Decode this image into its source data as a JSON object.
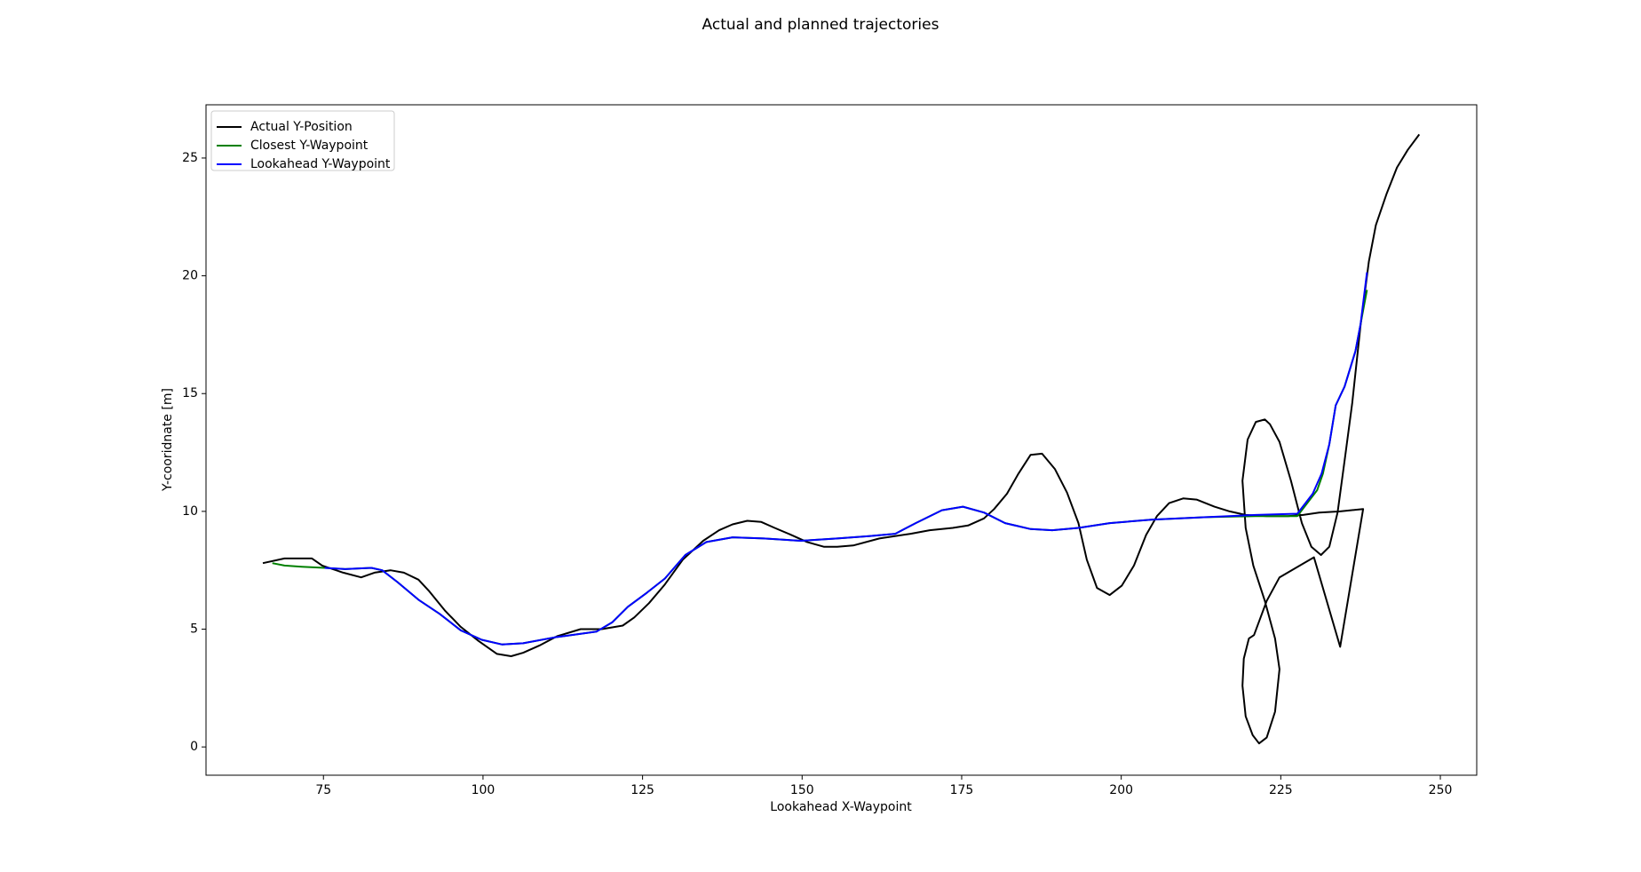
{
  "chart_data": {
    "type": "line",
    "title": "Actual and planned trajectories",
    "x_label": "Lookahead X-Waypoint",
    "y_label": "Y-cooridnate [m]",
    "xlim": [
      56.6,
      255.7
    ],
    "ylim": [
      -1.2,
      27.26
    ],
    "xticks": [
      75,
      100,
      125,
      150,
      175,
      200,
      225,
      250
    ],
    "yticks": [
      0,
      5,
      10,
      15,
      20,
      25
    ],
    "legend": "upper left",
    "series": [
      {
        "name": "Actual Y-Position",
        "color": "#000000",
        "x": [
          65.5,
          68.9,
          73.2,
          74.8,
          78.1,
          80.9,
          83.0,
          85.5,
          87.6,
          89.9,
          91.6,
          94.0,
          96.5,
          99.3,
          102.2,
          104.4,
          106.3,
          108.8,
          111.6,
          115.3,
          118.6,
          121.9,
          123.7,
          126.0,
          128.5,
          131.3,
          134.5,
          137.0,
          139.1,
          141.4,
          143.6,
          145.7,
          148.3,
          150.8,
          153.4,
          155.5,
          158.0,
          162.1,
          167.0,
          170.0,
          173.6,
          176.0,
          178.5,
          180.1,
          182.1,
          183.9,
          185.8,
          187.6,
          189.6,
          191.5,
          193.3,
          194.6,
          196.2,
          198.2,
          200.1,
          202.0,
          203.9,
          205.6,
          207.5,
          209.7,
          211.8,
          214.6,
          217.0,
          219.5,
          222.8,
          226.1,
          228.5,
          231.0,
          234.3,
          237.9,
          234.3,
          230.2,
          224.8,
          222.8,
          220.8,
          220.0,
          219.2,
          219.0,
          219.5,
          220.6,
          221.6,
          222.8,
          224.1,
          224.8,
          224.1,
          222.5,
          220.7,
          219.5,
          219.0,
          219.8,
          221.1,
          222.5,
          223.3,
          224.8,
          226.6,
          228.3,
          229.8,
          231.3,
          232.6,
          233.9,
          235.0,
          236.2,
          237.5,
          238.8,
          239.9,
          241.6,
          243.2,
          244.9,
          246.7
        ],
        "values": [
          7.8,
          8.0,
          8.0,
          7.7,
          7.4,
          7.2,
          7.4,
          7.5,
          7.4,
          7.1,
          6.6,
          5.8,
          5.1,
          4.5,
          3.95,
          3.85,
          4.0,
          4.3,
          4.7,
          5.0,
          5.0,
          5.15,
          5.5,
          6.1,
          6.9,
          7.95,
          8.75,
          9.2,
          9.45,
          9.6,
          9.55,
          9.3,
          9.0,
          8.7,
          8.5,
          8.5,
          8.55,
          8.85,
          9.05,
          9.2,
          9.3,
          9.4,
          9.7,
          10.1,
          10.75,
          11.6,
          12.4,
          12.45,
          11.8,
          10.8,
          9.5,
          7.95,
          6.75,
          6.45,
          6.85,
          7.7,
          9.0,
          9.8,
          10.35,
          10.55,
          10.5,
          10.2,
          10.0,
          9.85,
          9.8,
          9.8,
          9.85,
          9.95,
          10.0,
          10.1,
          4.25,
          8.05,
          7.2,
          6.2,
          4.75,
          4.6,
          3.75,
          2.6,
          1.3,
          0.5,
          0.15,
          0.4,
          1.5,
          3.3,
          4.6,
          6.2,
          7.7,
          9.3,
          11.3,
          13.05,
          13.8,
          13.9,
          13.7,
          12.95,
          11.3,
          9.5,
          8.5,
          8.15,
          8.5,
          9.95,
          12.15,
          14.6,
          17.9,
          20.6,
          22.15,
          23.5,
          24.6,
          25.35,
          26.0
        ]
      },
      {
        "name": "Closest Y-Waypoint",
        "color": "#008000",
        "x": [
          67.0,
          68.9,
          71.6,
          75.2,
          78.4,
          82.5,
          84.2,
          86.6,
          89.9,
          93.2,
          96.5,
          99.8,
          103.0,
          106.3,
          111.2,
          117.8,
          120.3,
          122.7,
          125.7,
          128.5,
          131.7,
          135.0,
          139.1,
          144.0,
          149.8,
          155.5,
          160.5,
          164.6,
          167.8,
          171.9,
          175.2,
          178.5,
          181.8,
          185.8,
          189.2,
          193.3,
          198.2,
          204.7,
          212.9,
          221.1,
          227.6,
          230.7,
          231.6,
          232.6,
          233.6,
          235.0,
          236.7,
          237.5,
          238.5
        ],
        "values": [
          7.8,
          7.7,
          7.65,
          7.6,
          7.55,
          7.6,
          7.5,
          7.0,
          6.25,
          5.65,
          4.95,
          4.55,
          4.35,
          4.4,
          4.65,
          4.9,
          5.3,
          5.95,
          6.55,
          7.15,
          8.15,
          8.7,
          8.9,
          8.85,
          8.75,
          8.85,
          8.95,
          9.05,
          9.5,
          10.05,
          10.2,
          9.95,
          9.5,
          9.25,
          9.2,
          9.3,
          9.5,
          9.65,
          9.75,
          9.8,
          9.8,
          10.9,
          11.6,
          12.85,
          14.5,
          15.3,
          16.8,
          17.95,
          19.4
        ]
      },
      {
        "name": "Lookahead Y-Waypoint",
        "color": "#0000ff",
        "x": [
          75.2,
          78.4,
          82.5,
          84.2,
          86.6,
          89.9,
          93.2,
          96.5,
          99.8,
          103.0,
          106.3,
          111.2,
          117.8,
          120.3,
          122.7,
          125.7,
          128.5,
          131.7,
          135.0,
          139.1,
          144.0,
          149.8,
          155.5,
          160.5,
          164.6,
          167.8,
          171.9,
          175.2,
          178.5,
          181.8,
          185.8,
          189.2,
          193.3,
          198.2,
          204.7,
          212.9,
          221.1,
          227.6,
          230.0,
          231.4,
          232.6,
          233.6,
          235.0,
          236.7,
          237.5,
          238.5
        ],
        "values": [
          7.6,
          7.55,
          7.6,
          7.5,
          7.0,
          6.25,
          5.65,
          4.95,
          4.55,
          4.35,
          4.4,
          4.65,
          4.9,
          5.3,
          5.95,
          6.55,
          7.15,
          8.15,
          8.7,
          8.9,
          8.85,
          8.75,
          8.85,
          8.95,
          9.05,
          9.5,
          10.05,
          10.2,
          9.95,
          9.5,
          9.25,
          9.2,
          9.3,
          9.5,
          9.65,
          9.75,
          9.85,
          9.9,
          10.75,
          11.6,
          12.85,
          14.5,
          15.3,
          16.8,
          17.95,
          20.15
        ]
      }
    ]
  }
}
